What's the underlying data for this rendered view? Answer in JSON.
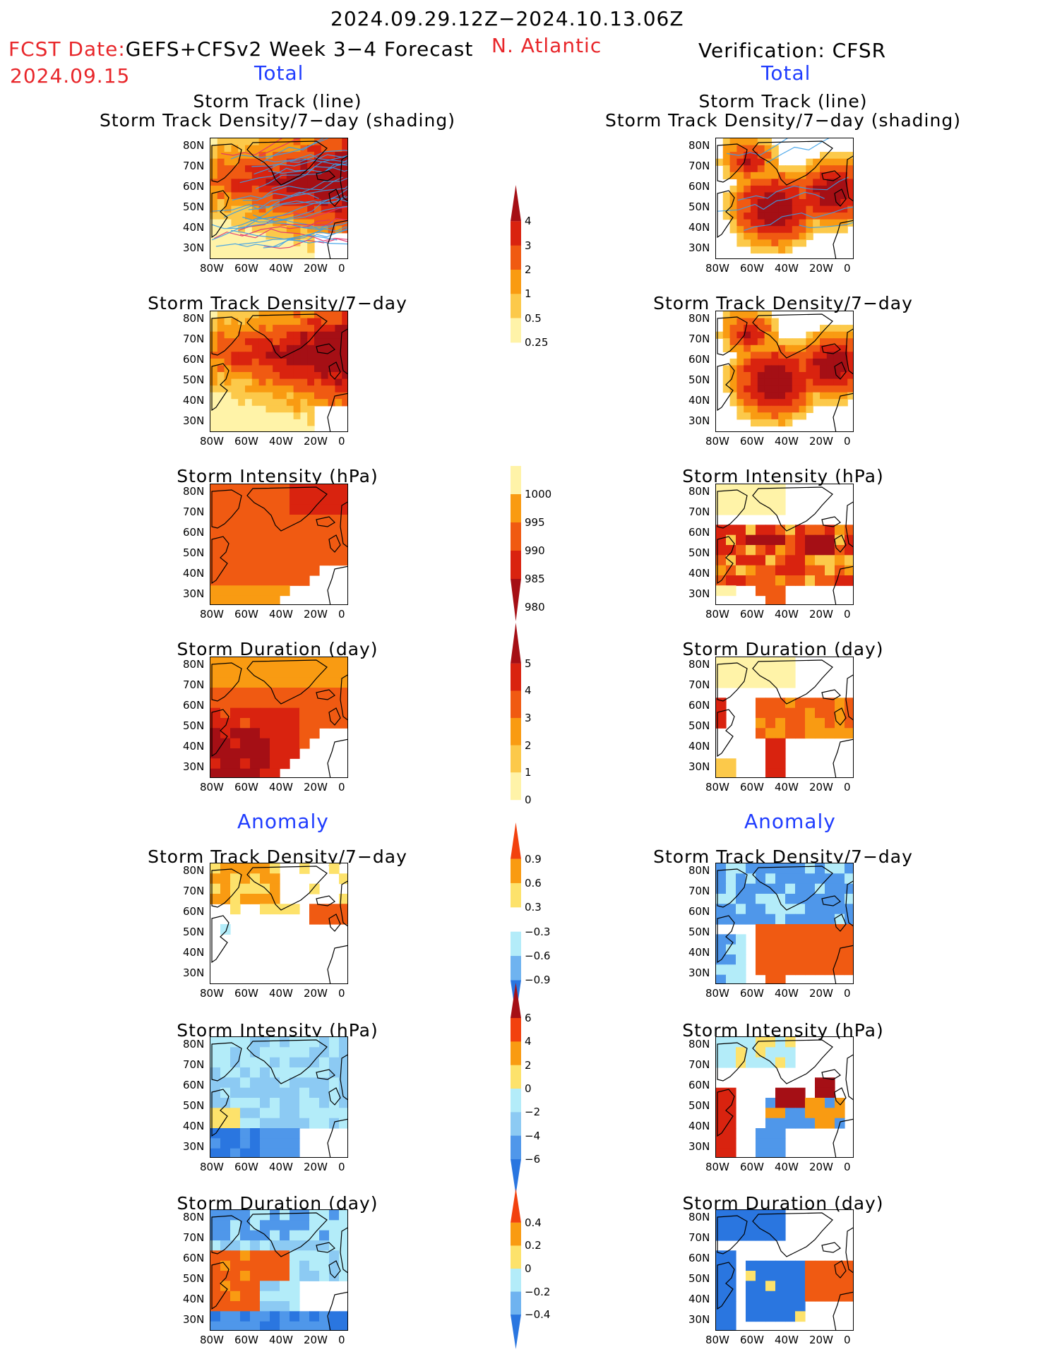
{
  "header": {
    "period": "2024.09.29.12Z−2024.10.13.06Z",
    "fcst_label": "FCST Date:",
    "fcst_model": "GEFS+CFSv2 Week 3−4 Forecast",
    "fcst_date": "2024.09.15",
    "region": "N. Atlantic",
    "verification": "Verification: CFSR",
    "left_total": "Total",
    "right_total": "Total",
    "left_anomaly": "Anomaly",
    "right_anomaly": "Anomaly"
  },
  "axes": {
    "lat_labels": [
      "80N",
      "70N",
      "60N",
      "50N",
      "40N",
      "30N"
    ],
    "lon_labels": [
      "80W",
      "60W",
      "40W",
      "20W",
      "0"
    ]
  },
  "panels": [
    {
      "title1": "Storm Track (line)",
      "title2": "Storm Track Density/7−day (shading)"
    },
    {
      "title1": "Storm Track Density/7−day"
    },
    {
      "title1": "Storm Intensity (hPa)"
    },
    {
      "title1": "Storm Duration (day)"
    },
    {
      "title1": "Storm Track Density/7−day"
    },
    {
      "title1": "Storm Intensity (hPa)"
    },
    {
      "title1": "Storm Duration (day)"
    }
  ],
  "colorbars": [
    {
      "name": "density-total",
      "labels": [
        "4",
        "3",
        "2",
        "1",
        "0.5",
        "0.25"
      ],
      "colors": [
        "#a50f15",
        "#d9230f",
        "#f05a12",
        "#f99b12",
        "#fcc94a",
        "#fff3a8"
      ]
    },
    {
      "name": "intensity-total",
      "labels": [
        "1000",
        "995",
        "990",
        "985",
        "980"
      ],
      "colors": [
        "#fff3a8",
        "#f99b12",
        "#f05a12",
        "#d9230f",
        "#a50f15"
      ]
    },
    {
      "name": "duration-total",
      "labels": [
        "5",
        "4",
        "3",
        "2",
        "1",
        "0"
      ],
      "colors": [
        "#a50f15",
        "#d9230f",
        "#f05a12",
        "#f99b12",
        "#fcc94a",
        "#fff3a8"
      ]
    },
    {
      "name": "density-anomaly",
      "labels": [
        "0.9",
        "0.6",
        "0.3",
        "−0.3",
        "−0.6",
        "−0.9"
      ],
      "colors": [
        "#f2410e",
        "#f99b12",
        "#fde26b",
        "#ffffff",
        "#b3ecf9",
        "#6fb3f0",
        "#2a76e0"
      ]
    },
    {
      "name": "intensity-anomaly",
      "labels": [
        "6",
        "4",
        "2",
        "0",
        "−2",
        "−4",
        "−6"
      ],
      "colors": [
        "#a50f15",
        "#f2410e",
        "#f99b12",
        "#fde26b",
        "#b3ecf9",
        "#8ccaf3",
        "#4f97ea",
        "#2a76e0"
      ]
    },
    {
      "name": "duration-anomaly",
      "labels": [
        "0.4",
        "0.2",
        "0",
        "−0.2",
        "−0.4"
      ],
      "colors": [
        "#f2410e",
        "#f99b12",
        "#fde26b",
        "#b3ecf9",
        "#6fb3f0",
        "#2a76e0"
      ]
    }
  ],
  "map_colors": {
    "dark_red": "#a50f15",
    "red": "#d9230f",
    "red_orange": "#f05a12",
    "orange": "#f99b12",
    "light_orange": "#fcc94a",
    "pale_yellow": "#fff3a8",
    "yellow": "#fde26b",
    "light_blue": "#b3ecf9",
    "mid_blue": "#8ccaf3",
    "blue": "#4f97ea",
    "dark_blue": "#2a76e0",
    "track_blue": "#3a9ee8",
    "track_red": "#e0306e"
  }
}
